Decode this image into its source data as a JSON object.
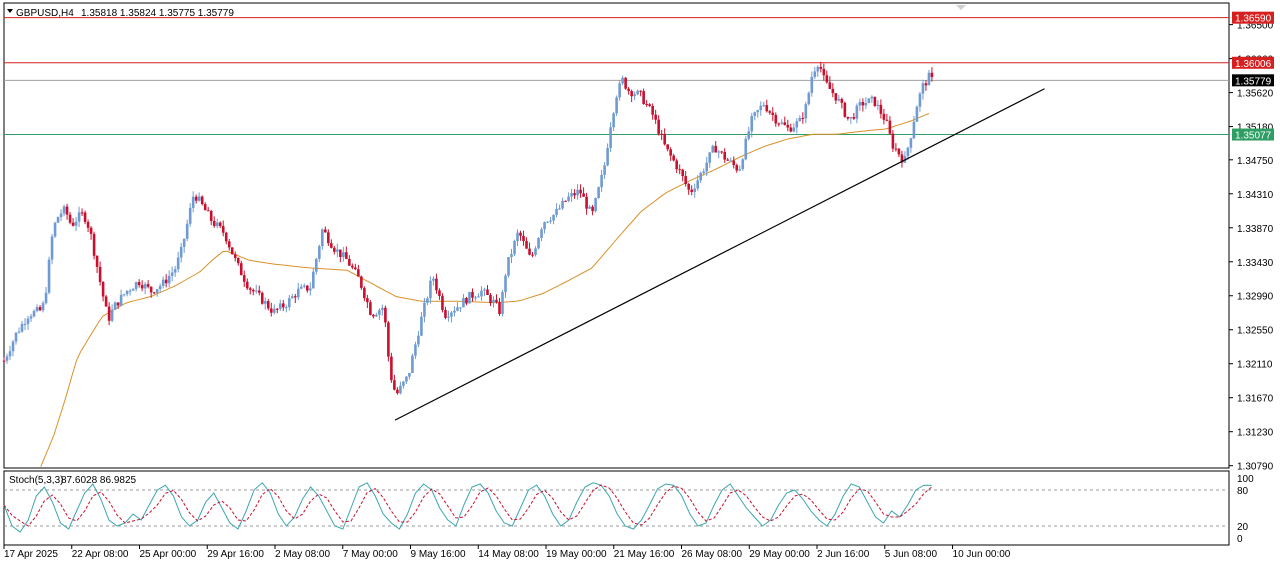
{
  "header": {
    "symbol": "GBPUSD,H4",
    "ohlc": "1.35818 1.35824 1.35775 1.35779"
  },
  "stoch_header": {
    "label": "Stoch(5,3,3)",
    "values": "87.6028 86.9825"
  },
  "colors": {
    "bull": "#6f9bd2",
    "bear": "#c8102e",
    "ma": "#d9912a",
    "resistance": "#d62020",
    "support": "#2e9e64",
    "current": "#a0a0a0",
    "trendline": "#000000",
    "stoch_main": "#3ea6b0",
    "stoch_signal": "#c8102e"
  },
  "chart_data": {
    "type": "candlestick",
    "symbol": "GBPUSD",
    "timeframe": "H4",
    "price_axis": {
      "ticks": [
        "1.36500",
        "1.36060",
        "1.35620",
        "1.35180",
        "1.34750",
        "1.34310",
        "1.33870",
        "1.33430",
        "1.32990",
        "1.32550",
        "1.32110",
        "1.31670",
        "1.31230",
        "1.30790"
      ],
      "range": [
        1.3076,
        1.3678
      ]
    },
    "time_axis": {
      "labels": [
        "17 Apr 2025",
        "22 Apr 08:00",
        "25 Apr 00:00",
        "29 Apr 16:00",
        "2 May 08:00",
        "7 May 00:00",
        "9 May 16:00",
        "14 May 08:00",
        "19 May 00:00",
        "21 May 16:00",
        "26 May 08:00",
        "29 May 00:00",
        "2 Jun 16:00",
        "5 Jun 08:00",
        "10 Jun 00:00"
      ]
    },
    "horizontal_levels": [
      {
        "label": "1.36590",
        "value": 1.3659,
        "role": "resistance"
      },
      {
        "label": "1.36006",
        "value": 1.36006,
        "role": "resistance"
      },
      {
        "label": "1.35779",
        "value": 1.35779,
        "role": "current"
      },
      {
        "label": "1.35077",
        "value": 1.35077,
        "role": "support"
      }
    ],
    "trendline": {
      "from": [
        0.3192,
        1.3138
      ],
      "to": [
        0.8494,
        1.3567
      ]
    },
    "anchors": [
      [
        0,
        1.3215
      ],
      [
        0.01,
        1.325
      ],
      [
        0.02,
        1.3275
      ],
      [
        0.03,
        1.328
      ],
      [
        0.033,
        1.329
      ],
      [
        0.04,
        1.3385
      ],
      [
        0.045,
        1.3405
      ],
      [
        0.05,
        1.341
      ],
      [
        0.055,
        1.339
      ],
      [
        0.06,
        1.34
      ],
      [
        0.065,
        1.3405
      ],
      [
        0.07,
        1.3385
      ],
      [
        0.075,
        1.3345
      ],
      [
        0.08,
        1.3305
      ],
      [
        0.085,
        1.3268
      ],
      [
        0.09,
        1.3285
      ],
      [
        0.1,
        1.3305
      ],
      [
        0.11,
        1.3318
      ],
      [
        0.12,
        1.3305
      ],
      [
        0.13,
        1.3315
      ],
      [
        0.14,
        1.3335
      ],
      [
        0.145,
        1.3358
      ],
      [
        0.15,
        1.3395
      ],
      [
        0.155,
        1.3432
      ],
      [
        0.16,
        1.342
      ],
      [
        0.17,
        1.3395
      ],
      [
        0.18,
        1.338
      ],
      [
        0.19,
        1.334
      ],
      [
        0.2,
        1.331
      ],
      [
        0.21,
        1.3295
      ],
      [
        0.22,
        1.3278
      ],
      [
        0.23,
        1.3288
      ],
      [
        0.24,
        1.3305
      ],
      [
        0.25,
        1.331
      ],
      [
        0.26,
        1.3385
      ],
      [
        0.27,
        1.336
      ],
      [
        0.28,
        1.3345
      ],
      [
        0.29,
        1.332
      ],
      [
        0.3,
        1.3275
      ],
      [
        0.31,
        1.3285
      ],
      [
        0.315,
        1.32
      ],
      [
        0.32,
        1.317
      ],
      [
        0.33,
        1.3195
      ],
      [
        0.34,
        1.3265
      ],
      [
        0.35,
        1.3325
      ],
      [
        0.36,
        1.3275
      ],
      [
        0.37,
        1.3285
      ],
      [
        0.38,
        1.3298
      ],
      [
        0.39,
        1.3305
      ],
      [
        0.4,
        1.329
      ],
      [
        0.405,
        1.3278
      ],
      [
        0.41,
        1.3335
      ],
      [
        0.42,
        1.3382
      ],
      [
        0.43,
        1.3345
      ],
      [
        0.44,
        1.3395
      ],
      [
        0.45,
        1.3405
      ],
      [
        0.46,
        1.3425
      ],
      [
        0.47,
        1.3435
      ],
      [
        0.48,
        1.3402
      ],
      [
        0.49,
        1.3465
      ],
      [
        0.495,
        1.352
      ],
      [
        0.5,
        1.356
      ],
      [
        0.505,
        1.3578
      ],
      [
        0.51,
        1.3565
      ],
      [
        0.52,
        1.3558
      ],
      [
        0.53,
        1.3532
      ],
      [
        0.54,
        1.349
      ],
      [
        0.55,
        1.3465
      ],
      [
        0.56,
        1.3432
      ],
      [
        0.57,
        1.346
      ],
      [
        0.58,
        1.3492
      ],
      [
        0.59,
        1.3475
      ],
      [
        0.6,
        1.3462
      ],
      [
        0.61,
        1.3525
      ],
      [
        0.62,
        1.3548
      ],
      [
        0.63,
        1.3528
      ],
      [
        0.64,
        1.3515
      ],
      [
        0.65,
        1.3525
      ],
      [
        0.655,
        1.3545
      ],
      [
        0.66,
        1.3588
      ],
      [
        0.665,
        1.3603
      ],
      [
        0.67,
        1.3575
      ],
      [
        0.68,
        1.3555
      ],
      [
        0.69,
        1.3525
      ],
      [
        0.7,
        1.3548
      ],
      [
        0.71,
        1.3552
      ],
      [
        0.72,
        1.3525
      ],
      [
        0.725,
        1.3495
      ],
      [
        0.73,
        1.3485
      ],
      [
        0.735,
        1.3472
      ],
      [
        0.74,
        1.3505
      ],
      [
        0.745,
        1.3545
      ],
      [
        0.75,
        1.357
      ],
      [
        0.755,
        1.3582
      ],
      [
        0.7575,
        1.35779
      ]
    ],
    "moving_average_anchors": [
      [
        0.03,
        1.3078
      ],
      [
        0.04,
        1.3115
      ],
      [
        0.05,
        1.3165
      ],
      [
        0.06,
        1.322
      ],
      [
        0.08,
        1.3272
      ],
      [
        0.1,
        1.329
      ],
      [
        0.12,
        1.3298
      ],
      [
        0.14,
        1.3312
      ],
      [
        0.16,
        1.333
      ],
      [
        0.17,
        1.3345
      ],
      [
        0.18,
        1.3358
      ],
      [
        0.2,
        1.3345
      ],
      [
        0.22,
        1.334
      ],
      [
        0.25,
        1.3335
      ],
      [
        0.28,
        1.3332
      ],
      [
        0.3,
        1.3315
      ],
      [
        0.32,
        1.3298
      ],
      [
        0.34,
        1.3292
      ],
      [
        0.37,
        1.3292
      ],
      [
        0.4,
        1.329
      ],
      [
        0.42,
        1.3292
      ],
      [
        0.44,
        1.3302
      ],
      [
        0.46,
        1.3318
      ],
      [
        0.48,
        1.3335
      ],
      [
        0.5,
        1.3372
      ],
      [
        0.52,
        1.3408
      ],
      [
        0.54,
        1.3432
      ],
      [
        0.56,
        1.3448
      ],
      [
        0.58,
        1.3462
      ],
      [
        0.6,
        1.3478
      ],
      [
        0.62,
        1.3492
      ],
      [
        0.64,
        1.3502
      ],
      [
        0.66,
        1.3508
      ],
      [
        0.68,
        1.3508
      ],
      [
        0.7,
        1.3512
      ],
      [
        0.72,
        1.3515
      ],
      [
        0.74,
        1.3525
      ],
      [
        0.755,
        1.3535
      ]
    ],
    "stochastic": {
      "main": [
        55,
        20,
        10,
        30,
        70,
        85,
        60,
        25,
        15,
        45,
        75,
        90,
        65,
        30,
        20,
        25,
        40,
        30,
        55,
        80,
        88,
        70,
        35,
        20,
        30,
        60,
        75,
        50,
        25,
        15,
        45,
        80,
        92,
        75,
        40,
        20,
        35,
        65,
        85,
        70,
        45,
        20,
        15,
        50,
        85,
        92,
        70,
        40,
        25,
        15,
        40,
        75,
        90,
        80,
        50,
        30,
        20,
        55,
        85,
        90,
        75,
        45,
        25,
        20,
        50,
        80,
        88,
        70,
        40,
        20,
        30,
        60,
        85,
        92,
        88,
        70,
        40,
        20,
        15,
        30,
        55,
        82,
        90,
        88,
        70,
        40,
        20,
        25,
        55,
        80,
        90,
        70,
        50,
        35,
        20,
        30,
        55,
        75,
        80,
        65,
        45,
        30,
        20,
        40,
        70,
        90,
        85,
        60,
        35,
        25,
        45,
        35,
        55,
        80,
        88,
        87.6
      ],
      "levels": [
        "100",
        "80",
        "20",
        "0"
      ],
      "range": [
        0,
        100
      ]
    }
  }
}
